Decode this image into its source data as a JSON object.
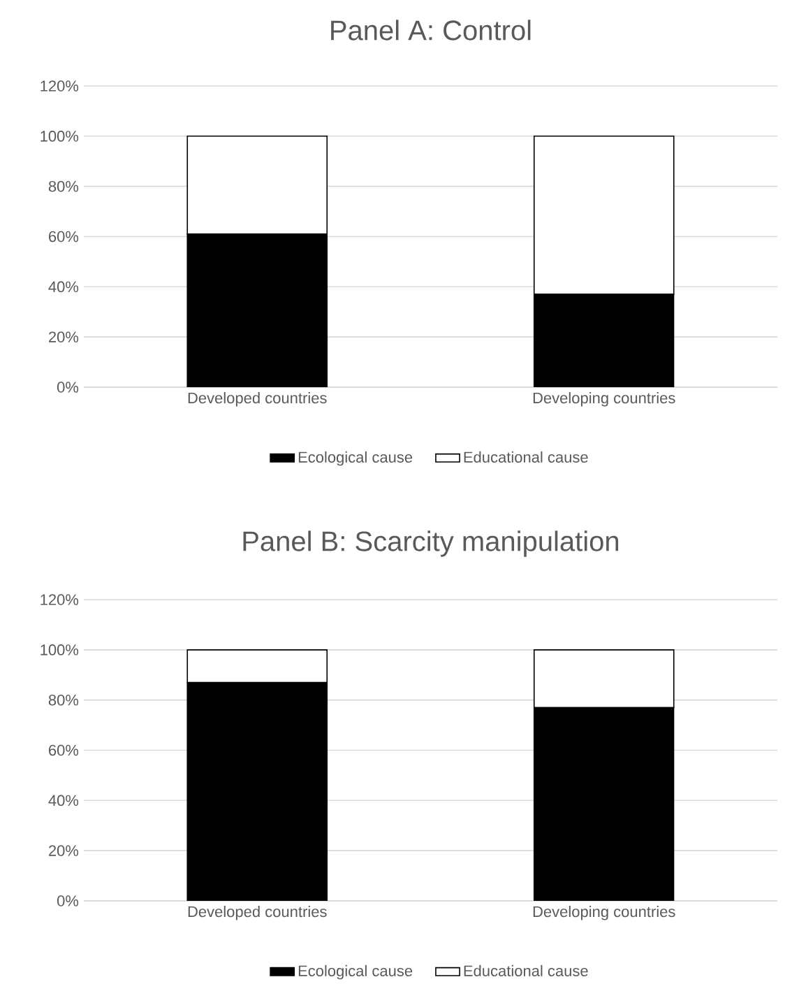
{
  "chart_data": [
    {
      "type": "bar",
      "title": "Panel A: Control",
      "stacked": true,
      "categories": [
        "Developed countries",
        "Developing countries"
      ],
      "series": [
        {
          "name": "Ecological cause",
          "color": "#000000",
          "values": [
            61,
            37
          ]
        },
        {
          "name": "Educational cause",
          "color": "#ffffff",
          "values": [
            39,
            63
          ]
        }
      ],
      "ylim": [
        0,
        120
      ],
      "yticks": [
        {
          "value": 0,
          "label": "0%"
        },
        {
          "value": 20,
          "label": "20%"
        },
        {
          "value": 40,
          "label": "40%"
        },
        {
          "value": 60,
          "label": "60%"
        },
        {
          "value": 80,
          "label": "80%"
        },
        {
          "value": 100,
          "label": "100%"
        },
        {
          "value": 120,
          "label": "120%"
        }
      ],
      "grid": "y",
      "legend": "bottom"
    },
    {
      "type": "bar",
      "title": "Panel B: Scarcity manipulation",
      "stacked": true,
      "categories": [
        "Developed countries",
        "Developing countries"
      ],
      "series": [
        {
          "name": "Ecological cause",
          "color": "#000000",
          "values": [
            87,
            77
          ]
        },
        {
          "name": "Educational cause",
          "color": "#ffffff",
          "values": [
            13,
            23
          ]
        }
      ],
      "ylim": [
        0,
        120
      ],
      "yticks": [
        {
          "value": 0,
          "label": "0%"
        },
        {
          "value": 20,
          "label": "20%"
        },
        {
          "value": 40,
          "label": "40%"
        },
        {
          "value": 60,
          "label": "60%"
        },
        {
          "value": 80,
          "label": "80%"
        },
        {
          "value": 100,
          "label": "100%"
        },
        {
          "value": 120,
          "label": "120%"
        }
      ],
      "grid": "y",
      "legend": "bottom"
    }
  ]
}
